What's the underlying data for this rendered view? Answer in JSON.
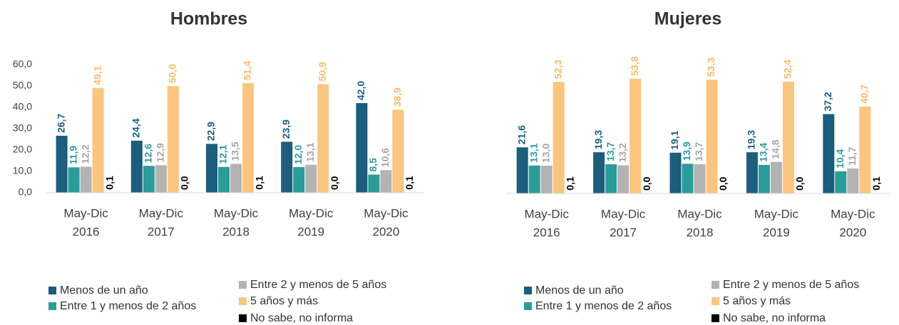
{
  "chart_data": [
    {
      "type": "bar",
      "title": "Hombres",
      "categories": [
        [
          "May-Dic",
          "2016"
        ],
        [
          "May-Dic",
          "2017"
        ],
        [
          "May-Dic",
          "2018"
        ],
        [
          "May-Dic",
          "2019"
        ],
        [
          "May-Dic",
          "2020"
        ]
      ],
      "ylim": [
        0,
        60
      ],
      "yticks": [
        {
          "value": 0,
          "label": "0,0"
        },
        {
          "value": 10,
          "label": "10,0"
        },
        {
          "value": 20,
          "label": "20,0"
        },
        {
          "value": 30,
          "label": "30,0"
        },
        {
          "value": 40,
          "label": "40,0"
        },
        {
          "value": 50,
          "label": "50,0"
        },
        {
          "value": 60,
          "label": "60,0"
        }
      ],
      "series": [
        {
          "name": "Menos de un año",
          "color": "#1b5e7d",
          "values": [
            26.7,
            24.4,
            22.9,
            23.9,
            42.0
          ],
          "value_labels": [
            "26,7",
            "24,4",
            "22,9",
            "23,9",
            "42,0"
          ]
        },
        {
          "name": "Entre 1 y menos de 2 años",
          "color": "#2a9d9a",
          "values": [
            11.9,
            12.6,
            12.1,
            12.0,
            8.5
          ],
          "value_labels": [
            "11,9",
            "12,6",
            "12,1",
            "12,0",
            "8,5"
          ]
        },
        {
          "name": "Entre 2 y menos de 5 años",
          "color": "#b3b3b3",
          "values": [
            12.2,
            12.9,
            13.5,
            13.1,
            10.6
          ],
          "value_labels": [
            "12,2",
            "12,9",
            "13,5",
            "13,1",
            "10,6"
          ]
        },
        {
          "name": "5 años y más",
          "color": "#fcc57d",
          "values": [
            49.1,
            50.0,
            51.4,
            50.9,
            38.9
          ],
          "value_labels": [
            "49,1",
            "50,0",
            "51,4",
            "50,9",
            "38,9"
          ]
        },
        {
          "name": "No sabe, no informa",
          "color": "#000000",
          "values": [
            0.1,
            0.0,
            0.1,
            0.0,
            0.1
          ],
          "value_labels": [
            "0,1",
            "0,0",
            "0,1",
            "0,0",
            "0,1"
          ]
        }
      ]
    },
    {
      "type": "bar",
      "title": "Mujeres",
      "categories": [
        [
          "May-Dic",
          "2016"
        ],
        [
          "May-Dic",
          "2017"
        ],
        [
          "May-Dic",
          "2018"
        ],
        [
          "May-Dic",
          "2019"
        ],
        [
          "May-Dic",
          "2020"
        ]
      ],
      "ylim": [
        0,
        60
      ],
      "series": [
        {
          "name": "Menos de un año",
          "color": "#1b5e7d",
          "values": [
            21.6,
            19.3,
            19.1,
            19.3,
            37.2
          ],
          "value_labels": [
            "21,6",
            "19,3",
            "19,1",
            "19,3",
            "37,2"
          ]
        },
        {
          "name": "Entre 1 y menos de 2 años",
          "color": "#2a9d9a",
          "values": [
            13.1,
            13.7,
            13.9,
            13.4,
            10.4
          ],
          "value_labels": [
            "13,1",
            "13,7",
            "13,9",
            "13,4",
            "10,4"
          ]
        },
        {
          "name": "Entre 2 y menos de 5 años",
          "color": "#b3b3b3",
          "values": [
            13.0,
            13.2,
            13.7,
            14.8,
            11.7
          ],
          "value_labels": [
            "13,0",
            "13,2",
            "13,7",
            "14,8",
            "11,7"
          ]
        },
        {
          "name": "5 años y más",
          "color": "#fcc57d",
          "values": [
            52.3,
            53.8,
            53.3,
            52.4,
            40.7
          ],
          "value_labels": [
            "52,3",
            "53,8",
            "53,3",
            "52,4",
            "40,7"
          ]
        },
        {
          "name": "No sabe, no informa",
          "color": "#000000",
          "values": [
            0.1,
            0.0,
            0.0,
            0.0,
            0.1
          ],
          "value_labels": [
            "0,1",
            "0,0",
            "0,0",
            "0,0",
            "0,1"
          ]
        }
      ]
    }
  ]
}
